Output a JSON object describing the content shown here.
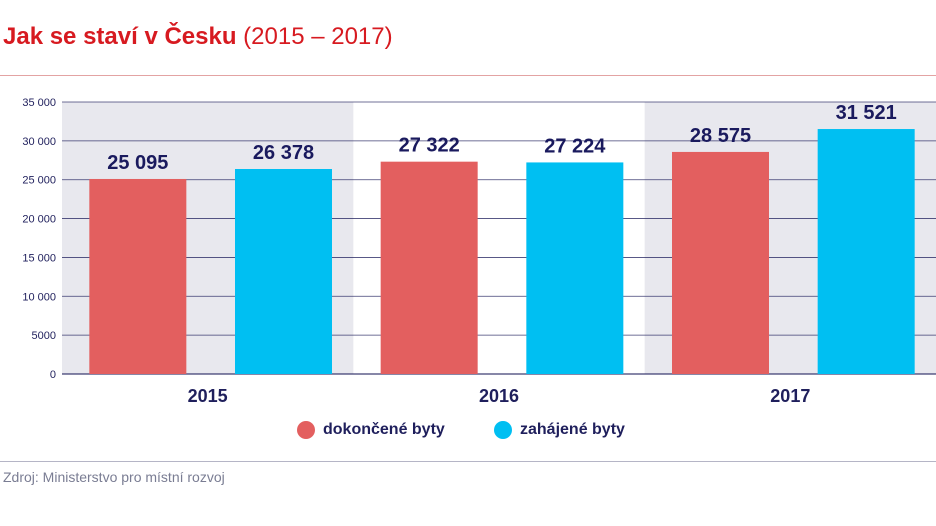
{
  "header": {
    "title_main": "Jak se staví v Česku",
    "title_sub": "(2015 – 2017)"
  },
  "colors": {
    "title": "#d71a20",
    "series_completed": "#e35f5f",
    "series_started": "#00bff2",
    "band_shade": "#e8e8ee",
    "axis_text": "#1f1f5c",
    "label_text": "#1a1a5e",
    "grid": "#1f1f5c"
  },
  "chart_data": {
    "type": "bar",
    "title": "Jak se staví v Česku (2015 – 2017)",
    "categories": [
      "2015",
      "2016",
      "2017"
    ],
    "series": [
      {
        "name": "dokončené byty",
        "values": [
          25095,
          27322,
          28575
        ],
        "labels": [
          "25 095",
          "27 322",
          "28 575"
        ]
      },
      {
        "name": "zahájené byty",
        "values": [
          26378,
          27224,
          31521
        ],
        "labels": [
          "26 378",
          "27 224",
          "31 521"
        ]
      }
    ],
    "ylim": [
      0,
      35000
    ],
    "yticks": [
      0,
      5000,
      10000,
      15000,
      20000,
      25000,
      30000,
      35000
    ],
    "ytick_labels": [
      "0",
      "5000",
      "10 000",
      "15 000",
      "20 000",
      "25 000",
      "30 000",
      "35 000"
    ],
    "xlabel": "",
    "ylabel": "",
    "grid": true,
    "legend": "bottom-center"
  },
  "legend": {
    "items": [
      {
        "label": "dokončené byty",
        "color": "#e35f5f"
      },
      {
        "label": "zahájené byty",
        "color": "#00bff2"
      }
    ]
  },
  "footer": {
    "source": "Zdroj: Ministerstvo pro místní rozvoj"
  }
}
